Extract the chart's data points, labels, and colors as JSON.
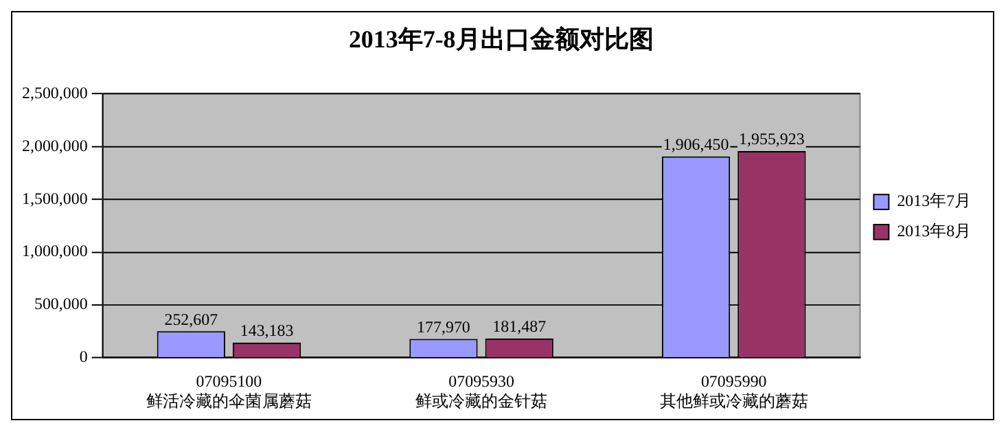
{
  "chart_data": {
    "type": "bar",
    "title": "2013年7-8月出口金额对比图",
    "categories": [
      "07095100\n鲜活冷藏的伞菌属蘑菇",
      "07095930\n鲜或冷藏的金针菇",
      "07095990\n其他鲜或冷藏的蘑菇"
    ],
    "series": [
      {
        "name": "2013年7月",
        "color": "#9999ff",
        "values": [
          252607,
          177970,
          1906450
        ],
        "value_labels": [
          "252,607",
          "177,970",
          "1,906,450"
        ]
      },
      {
        "name": "2013年8月",
        "color": "#993366",
        "values": [
          143183,
          181487,
          1955923
        ],
        "value_labels": [
          "143,183",
          "181,487",
          "1,955,923"
        ]
      }
    ],
    "ylim": [
      0,
      2500000
    ],
    "yticks": [
      {
        "value": 0,
        "label": "0"
      },
      {
        "value": 500000,
        "label": "500,000"
      },
      {
        "value": 1000000,
        "label": "1,000,000"
      },
      {
        "value": 1500000,
        "label": "1,500,000"
      },
      {
        "value": 2000000,
        "label": "2,000,000"
      },
      {
        "value": 2500000,
        "label": "2,500,000"
      }
    ],
    "grid": "y",
    "legend": "right"
  }
}
